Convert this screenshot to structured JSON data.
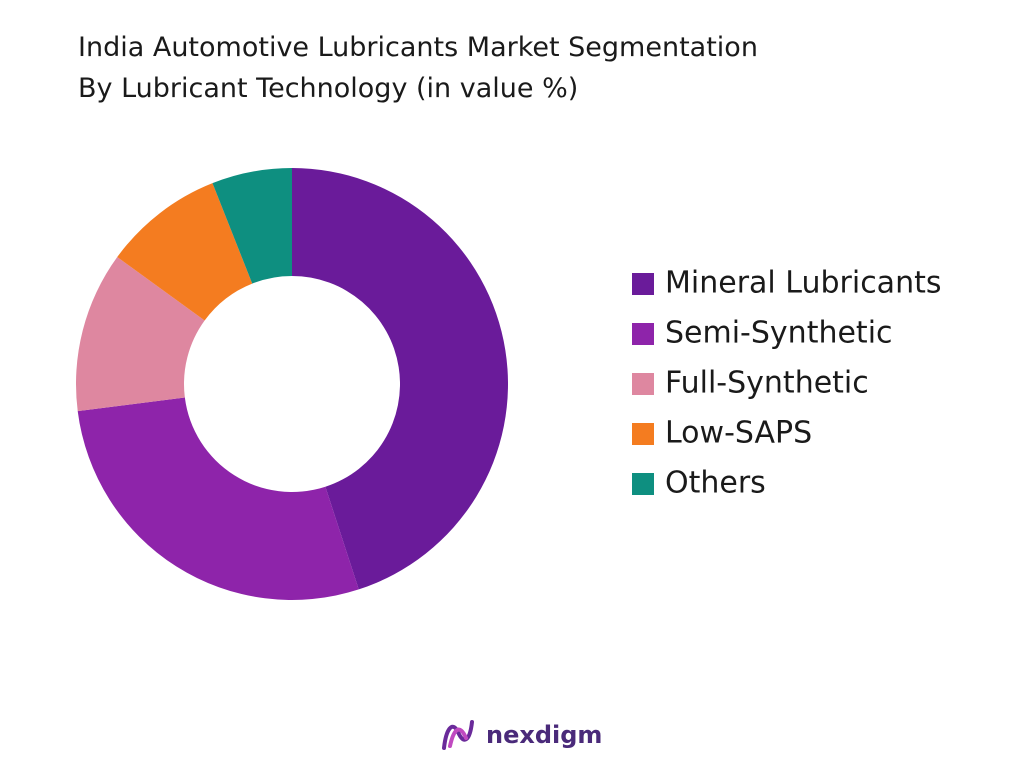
{
  "chart_data": {
    "type": "donut",
    "title": [
      "India Automotive Lubricants Market Segmentation",
      "By Lubricant Technology (in value %)"
    ],
    "categories": [
      "Mineral Lubricants",
      "Semi-Synthetic",
      "Full-Synthetic",
      "Low-SAPS",
      "Others"
    ],
    "values": [
      45,
      28,
      12,
      9,
      6
    ],
    "colors": [
      "#6a1b9a",
      "#8e24aa",
      "#de87a0",
      "#f47c20",
      "#0e8f80"
    ],
    "legend": "right",
    "brand": "nexdigm"
  }
}
